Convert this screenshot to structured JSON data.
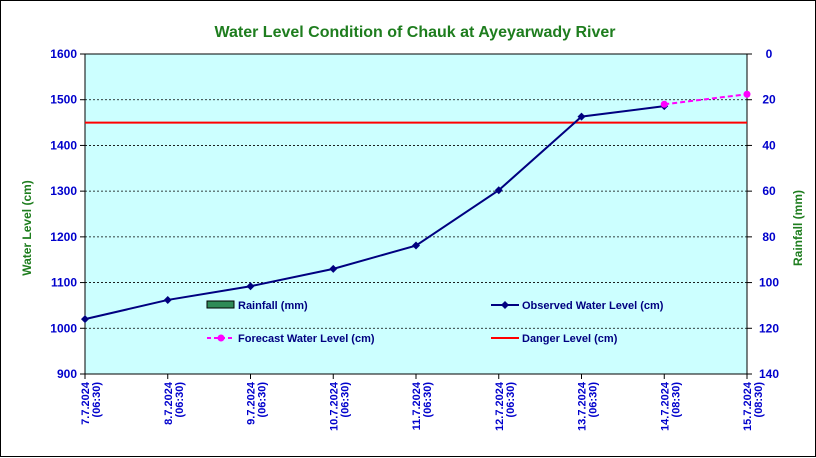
{
  "chart_data": {
    "type": "line",
    "title": "Water Level Condition of Chauk at Ayeyarwady River",
    "ylabel": "Water Level (cm)",
    "y2label": "Rainfall (mm)",
    "ylim": [
      900,
      1600
    ],
    "y_ticks": [
      "900",
      "1000",
      "1100",
      "1200",
      "1300",
      "1400",
      "1500",
      "1600"
    ],
    "y2lim": [
      0,
      140
    ],
    "y2_inverted": true,
    "y2_ticks": [
      "0",
      "20",
      "40",
      "60",
      "80",
      "100",
      "120",
      "140"
    ],
    "categories": [
      [
        "7.7.2024",
        "(06:30)"
      ],
      [
        "8.7.2024",
        "(06:30)"
      ],
      [
        "9.7.2024",
        "(06:30)"
      ],
      [
        "10.7.2024",
        "(06:30)"
      ],
      [
        "11.7.2024",
        "(06:30)"
      ],
      [
        "12.7.2024",
        "(06:30)"
      ],
      [
        "13.7.2024",
        "(06:30)"
      ],
      [
        "14.7.2024",
        "(08:30)"
      ],
      [
        "15.7.2024",
        "(08:30)"
      ]
    ],
    "series": [
      {
        "name": "Rainfall (mm)",
        "kind": "bar",
        "axis": "y2",
        "color": "#2e8b57",
        "values": [
          null,
          null,
          null,
          null,
          null,
          null,
          null,
          null,
          null
        ]
      },
      {
        "name": "Observed Water Level (cm)",
        "kind": "line",
        "axis": "y",
        "color": "#000080",
        "marker": "diamond",
        "values": [
          1020,
          1062,
          1092,
          1130,
          1181,
          1302,
          1463,
          1486,
          null
        ]
      },
      {
        "name": "Forecast Water Level (cm)",
        "kind": "line-dashed",
        "axis": "y",
        "color": "#ff00ff",
        "marker": "circle",
        "values": [
          null,
          null,
          null,
          null,
          null,
          null,
          null,
          1490,
          1512
        ]
      },
      {
        "name": "Danger Level (cm)",
        "kind": "constant",
        "axis": "y",
        "color": "#ff0000",
        "value": 1450
      }
    ],
    "grid": "horizontal-dashed",
    "legend_position": "inside-bottom",
    "colors": {
      "plot_background": "#ccffff",
      "title": "#1e7d1e",
      "axis_text": "#0000cc",
      "axis_title": "#1e7d1e"
    }
  }
}
